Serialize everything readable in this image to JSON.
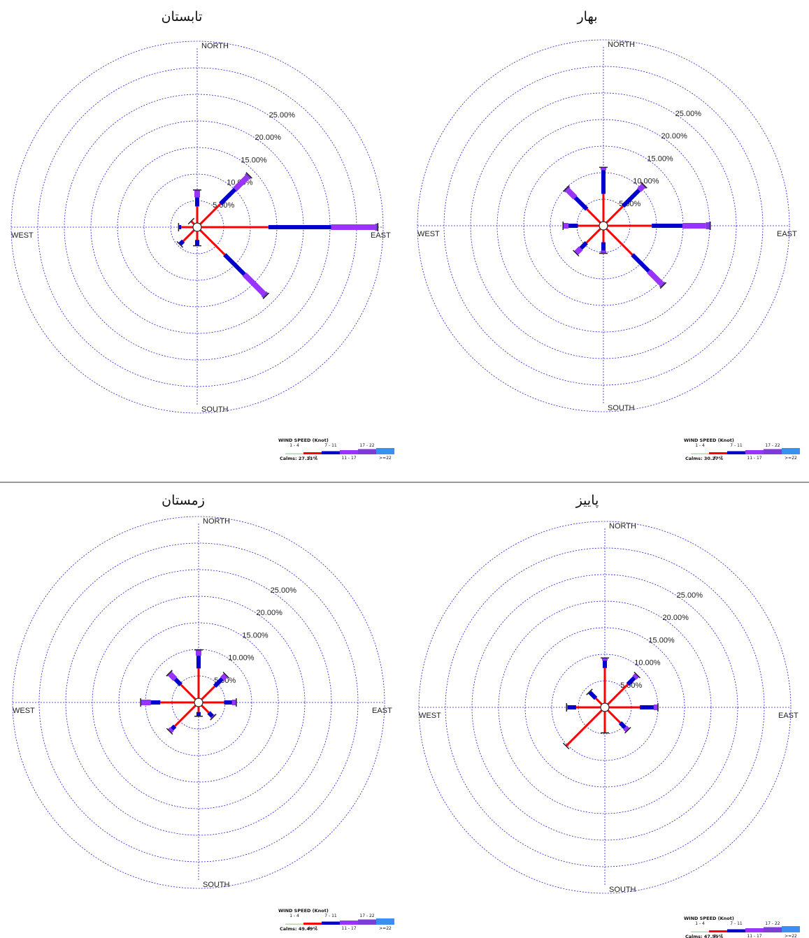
{
  "legend": {
    "title": "WIND SPEED (Knot)",
    "bins": [
      {
        "label": "1 - 4",
        "color": "#b6d7a8"
      },
      {
        "label": "4 - 7",
        "color": "#ff0000"
      },
      {
        "label": "7 - 11",
        "color": "#0000cc"
      },
      {
        "label": "11 - 17",
        "color": "#9933ff"
      },
      {
        "label": "17 - 22",
        "color": "#7d3cd8"
      },
      {
        "label": ">=22",
        "color": "#3b8ff2"
      }
    ]
  },
  "compass_labels": {
    "north": "NORTH",
    "south": "SOUTH",
    "east": "EAST",
    "west": "WEST"
  },
  "ring_labels": [
    "5.00%",
    "10.00%",
    "15.00%",
    "20.00%",
    "25.00%"
  ],
  "colors": {
    "grid": "#2222cc",
    "divider": "#333333"
  },
  "chart_data": [
    {
      "type": "wind-rose",
      "title": "تابستان",
      "calms": "Calms: 27.11%",
      "directions": [
        "N",
        "NE",
        "E",
        "SE",
        "S",
        "SW",
        "W",
        "NW"
      ],
      "segment_ends": [
        [
          0.5,
          3.9,
          5.6,
          7.0,
          7.0
        ],
        [
          0.5,
          6.2,
          10.1,
          13.3,
          13.8
        ],
        [
          0.5,
          13.4,
          25.2,
          33.5,
          34.0
        ],
        [
          0.5,
          7.3,
          12.6,
          17.7,
          18.3
        ],
        [
          0.5,
          2.4,
          3.5,
          3.5,
          3.5
        ],
        [
          0.5,
          3.7,
          4.5,
          4.6,
          4.6
        ],
        [
          0.5,
          3.0,
          3.4,
          3.5,
          3.5
        ],
        [
          0.5,
          1.5,
          1.6,
          1.6,
          1.6
        ]
      ]
    },
    {
      "type": "wind-rose",
      "title": "بهار",
      "calms": "Calms: 30.27%",
      "directions": [
        "N",
        "NE",
        "E",
        "SE",
        "S",
        "SW",
        "W",
        "NW"
      ],
      "segment_ends": [
        [
          0.5,
          6.0,
          10.5,
          11.0,
          11.0
        ],
        [
          0.5,
          5.2,
          9.5,
          10.5,
          10.8
        ],
        [
          0.5,
          9.1,
          14.9,
          19.3,
          20.1
        ],
        [
          0.5,
          7.7,
          12.1,
          15.5,
          15.9
        ],
        [
          0.5,
          3.1,
          4.7,
          5.2,
          5.2
        ],
        [
          0.5,
          4.5,
          6.0,
          7.3,
          7.3
        ],
        [
          0.5,
          4.8,
          6.6,
          7.5,
          7.6
        ],
        [
          0.5,
          4.4,
          7.5,
          9.5,
          9.9
        ]
      ]
    },
    {
      "type": "wind-rose",
      "title": "زمستان",
      "calms": "Calms: 49.49%",
      "directions": [
        "N",
        "NE",
        "E",
        "SE",
        "S",
        "SW",
        "W",
        "NW"
      ],
      "segment_ends": [
        [
          0.5,
          6.4,
          8.8,
          9.9,
          9.9
        ],
        [
          0.5,
          4.3,
          6.3,
          7.3,
          7.3
        ],
        [
          0.5,
          4.8,
          6.3,
          7.0,
          7.1
        ],
        [
          0.5,
          2.7,
          3.7,
          3.9,
          3.9
        ],
        [
          0.5,
          1.8,
          2.5,
          2.6,
          2.6
        ],
        [
          0.5,
          6.3,
          7.1,
          7.7,
          7.7
        ],
        [
          0.5,
          7.2,
          9.0,
          10.9,
          10.9
        ],
        [
          0.5,
          4.7,
          6.2,
          7.6,
          7.8
        ]
      ]
    },
    {
      "type": "wind-rose",
      "title": "پاییز",
      "calms": "Calms: 47.55%",
      "directions": [
        "N",
        "NE",
        "E",
        "SE",
        "S",
        "SW",
        "W",
        "NW"
      ],
      "segment_ends": [
        [
          0.5,
          7.4,
          8.8,
          9.3,
          9.3
        ],
        [
          0.5,
          6.1,
          7.9,
          8.6,
          8.6
        ],
        [
          0.5,
          6.6,
          9.2,
          10.0,
          10.0
        ],
        [
          0.5,
          4.1,
          5.4,
          6.1,
          6.1
        ],
        [
          0.5,
          4.8,
          4.8,
          4.8,
          4.8
        ],
        [
          0.5,
          10.2,
          10.3,
          10.3,
          10.3
        ],
        [
          0.5,
          5.4,
          7.0,
          7.2,
          7.2
        ],
        [
          0.5,
          2.4,
          4.0,
          4.1,
          4.1
        ]
      ]
    }
  ]
}
